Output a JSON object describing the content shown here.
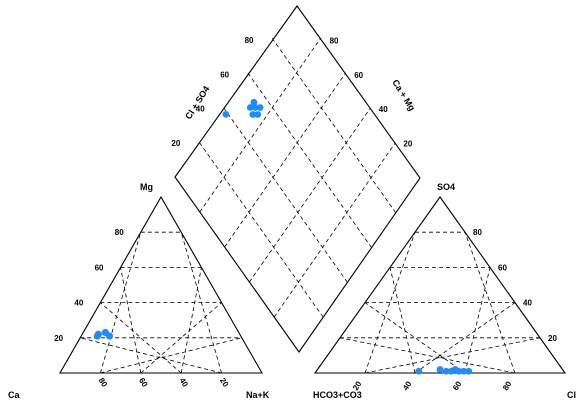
{
  "chart_data": {
    "type": "scatter",
    "title": "",
    "diagram": "piper",
    "point_color": "#1e8cff",
    "axis_labels": {
      "cation_left": "Ca",
      "cation_top": "Mg",
      "cation_right": "Na+K",
      "anion_left": "HCO3+CO3",
      "anion_top": "SO4",
      "anion_right": "Cl",
      "diamond_left": "Cl + SO4",
      "diamond_right": "Ca + Mg"
    },
    "cation_ticks": {
      "left_side": [
        "20",
        "40",
        "60",
        "80"
      ],
      "bottom": [
        "80",
        "60",
        "40",
        "20"
      ]
    },
    "anion_ticks": {
      "right_side": [
        "20",
        "40",
        "60",
        "80"
      ],
      "bottom": [
        "20",
        "40",
        "60",
        "80"
      ]
    },
    "diamond_ticks": {
      "left_side": [
        "20",
        "40",
        "60",
        "80"
      ],
      "right_side": [
        "80",
        "60",
        "40",
        "20"
      ]
    },
    "cation_points": [
      {
        "ca": 71,
        "mg": 21,
        "nak": 8
      },
      {
        "ca": 70,
        "mg": 22,
        "nak": 8
      },
      {
        "ca": 66,
        "mg": 23,
        "nak": 11
      },
      {
        "ca": 65,
        "mg": 21,
        "nak": 14
      }
    ],
    "anion_points": [
      {
        "hco3": 58,
        "so4": 1,
        "cl": 41
      },
      {
        "hco3": 49,
        "so4": 2,
        "cl": 49
      },
      {
        "hco3": 47,
        "so4": 1,
        "cl": 52
      },
      {
        "hco3": 45,
        "so4": 1,
        "cl": 54
      },
      {
        "hco3": 43,
        "so4": 2,
        "cl": 55
      },
      {
        "hco3": 42,
        "so4": 1,
        "cl": 57
      },
      {
        "hco3": 40,
        "so4": 1,
        "cl": 59
      },
      {
        "hco3": 38,
        "so4": 1,
        "cl": 61
      }
    ],
    "diamond_points": [
      {
        "cl_so4": 39,
        "ca_mg": 97
      },
      {
        "cl_so4": 50,
        "ca_mg": 86
      },
      {
        "cl_so4": 51,
        "ca_mg": 89
      },
      {
        "cl_so4": 53,
        "ca_mg": 87
      },
      {
        "cl_so4": 54,
        "ca_mg": 89
      },
      {
        "cl_so4": 55,
        "ca_mg": 85
      },
      {
        "cl_so4": 52,
        "ca_mg": 84
      }
    ]
  }
}
